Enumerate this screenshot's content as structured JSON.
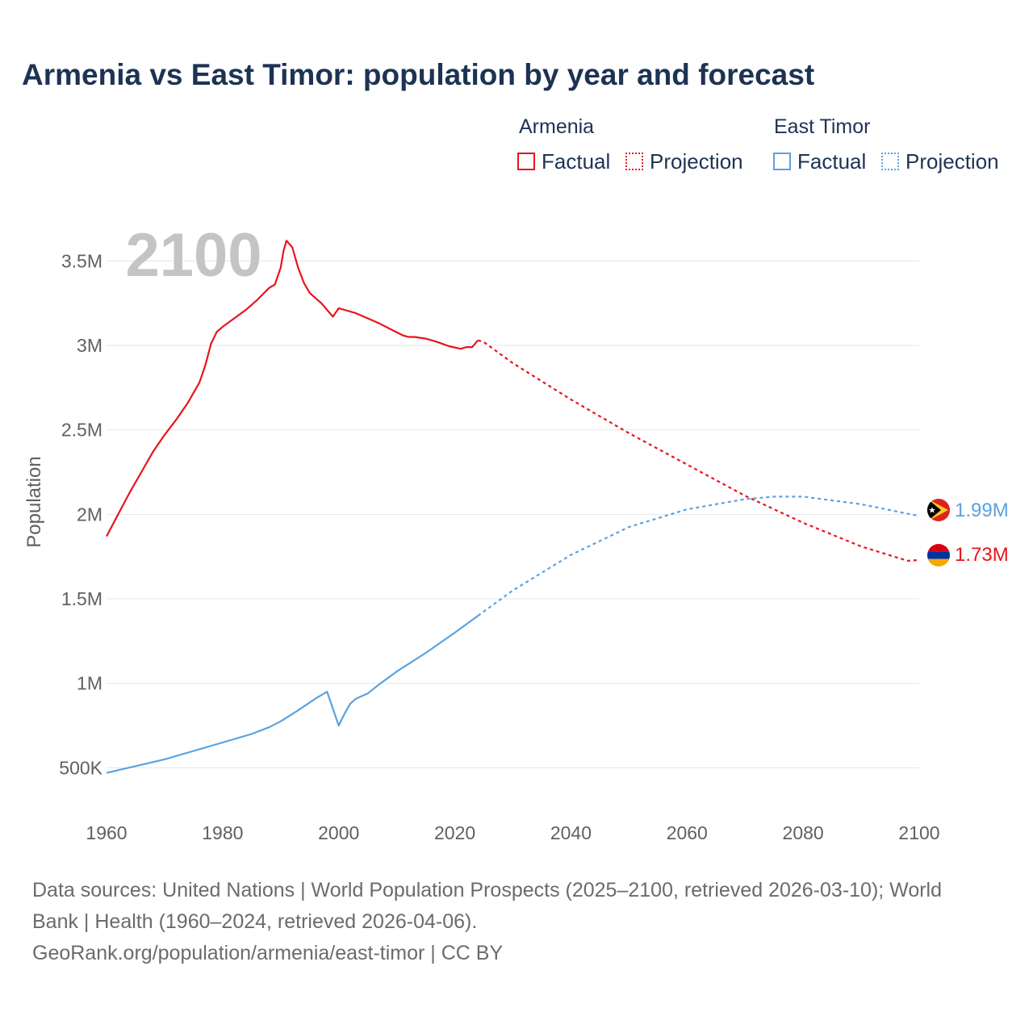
{
  "title": "Armenia vs East Timor: population by year and forecast",
  "legend": {
    "groups": [
      {
        "country": "Armenia",
        "factual_label": "Factual",
        "projection_label": "Projection",
        "color": "#e8141c"
      },
      {
        "country": "East Timor",
        "factual_label": "Factual",
        "projection_label": "Projection",
        "color": "#5aa2e0"
      }
    ]
  },
  "footer": {
    "sources": "Data sources: United Nations | World Population Prospects (2025–2100, retrieved 2026-03-10); World Bank | Health (1960–2024, retrieved 2026-04-06).",
    "credit": "GeoRank.org/population/armenia/east-timor | CC BY"
  },
  "chart_data": {
    "type": "line",
    "title": "Armenia vs East Timor: population by year and forecast",
    "xlabel": "",
    "ylabel": "Population",
    "xlim": [
      1960,
      2100
    ],
    "ylim": [
      330000,
      3850000
    ],
    "x_ticks": [
      1960,
      1980,
      2000,
      2020,
      2040,
      2060,
      2080,
      2100
    ],
    "y_ticks": [
      {
        "value": 500000,
        "label": "500K"
      },
      {
        "value": 1000000,
        "label": "1M"
      },
      {
        "value": 1500000,
        "label": "1.5M"
      },
      {
        "value": 2000000,
        "label": "2M"
      },
      {
        "value": 2500000,
        "label": "2.5M"
      },
      {
        "value": 3000000,
        "label": "3M"
      },
      {
        "value": 3500000,
        "label": "3.5M"
      }
    ],
    "year_watermark": "2100",
    "series": [
      {
        "name": "Armenia",
        "color": "#e8141c",
        "end_label": "1.73M",
        "factual": [
          [
            1960,
            1870000
          ],
          [
            1962,
            2000000
          ],
          [
            1964,
            2130000
          ],
          [
            1966,
            2250000
          ],
          [
            1968,
            2370000
          ],
          [
            1970,
            2470000
          ],
          [
            1972,
            2560000
          ],
          [
            1974,
            2660000
          ],
          [
            1976,
            2780000
          ],
          [
            1977,
            2880000
          ],
          [
            1978,
            3010000
          ],
          [
            1979,
            3080000
          ],
          [
            1980,
            3110000
          ],
          [
            1982,
            3160000
          ],
          [
            1984,
            3210000
          ],
          [
            1986,
            3270000
          ],
          [
            1988,
            3340000
          ],
          [
            1989,
            3360000
          ],
          [
            1990,
            3460000
          ],
          [
            1990.5,
            3560000
          ],
          [
            1991,
            3620000
          ],
          [
            1992,
            3580000
          ],
          [
            1993,
            3460000
          ],
          [
            1994,
            3370000
          ],
          [
            1995,
            3310000
          ],
          [
            1996,
            3280000
          ],
          [
            1997,
            3250000
          ],
          [
            1998,
            3210000
          ],
          [
            1999,
            3170000
          ],
          [
            2000,
            3220000
          ],
          [
            2001,
            3210000
          ],
          [
            2003,
            3190000
          ],
          [
            2005,
            3160000
          ],
          [
            2007,
            3130000
          ],
          [
            2009,
            3095000
          ],
          [
            2011,
            3060000
          ],
          [
            2012,
            3050000
          ],
          [
            2013,
            3050000
          ],
          [
            2015,
            3040000
          ],
          [
            2017,
            3020000
          ],
          [
            2019,
            2995000
          ],
          [
            2021,
            2980000
          ],
          [
            2022,
            2990000
          ],
          [
            2023,
            2990000
          ],
          [
            2024,
            3030000
          ]
        ],
        "projection": [
          [
            2024,
            3030000
          ],
          [
            2025,
            3020000
          ],
          [
            2030,
            2895000
          ],
          [
            2040,
            2680000
          ],
          [
            2050,
            2480000
          ],
          [
            2060,
            2295000
          ],
          [
            2070,
            2110000
          ],
          [
            2080,
            1950000
          ],
          [
            2090,
            1810000
          ],
          [
            2098,
            1725000
          ],
          [
            2100,
            1730000
          ]
        ]
      },
      {
        "name": "East Timor",
        "color": "#5aa2e0",
        "end_label": "1.99M",
        "factual": [
          [
            1960,
            470000
          ],
          [
            1965,
            510000
          ],
          [
            1970,
            550000
          ],
          [
            1975,
            600000
          ],
          [
            1980,
            650000
          ],
          [
            1985,
            700000
          ],
          [
            1988,
            740000
          ],
          [
            1990,
            775000
          ],
          [
            1993,
            840000
          ],
          [
            1996,
            910000
          ],
          [
            1998,
            950000
          ],
          [
            1999,
            850000
          ],
          [
            2000,
            750000
          ],
          [
            2001,
            820000
          ],
          [
            2002,
            880000
          ],
          [
            2003,
            910000
          ],
          [
            2005,
            940000
          ],
          [
            2007,
            995000
          ],
          [
            2010,
            1070000
          ],
          [
            2015,
            1180000
          ],
          [
            2020,
            1300000
          ],
          [
            2022,
            1350000
          ],
          [
            2024,
            1400000
          ]
        ],
        "projection": [
          [
            2024,
            1400000
          ],
          [
            2030,
            1550000
          ],
          [
            2040,
            1760000
          ],
          [
            2050,
            1925000
          ],
          [
            2060,
            2030000
          ],
          [
            2070,
            2090000
          ],
          [
            2075,
            2105000
          ],
          [
            2080,
            2105000
          ],
          [
            2090,
            2060000
          ],
          [
            2100,
            1990000
          ]
        ]
      }
    ]
  }
}
